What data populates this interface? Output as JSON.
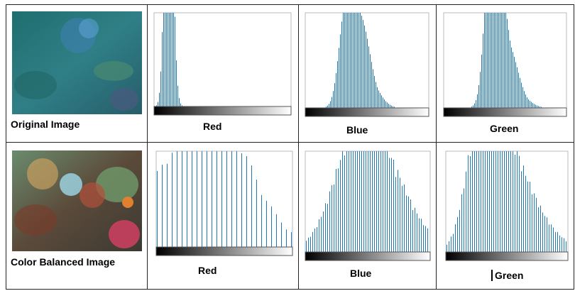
{
  "rows": [
    {
      "image_label": "Original Image",
      "histograms": [
        "Red",
        "Blue",
        "Green"
      ]
    },
    {
      "image_label": "Color Balanced Image",
      "histograms": [
        "Red",
        "Blue",
        "Green"
      ]
    }
  ]
}
